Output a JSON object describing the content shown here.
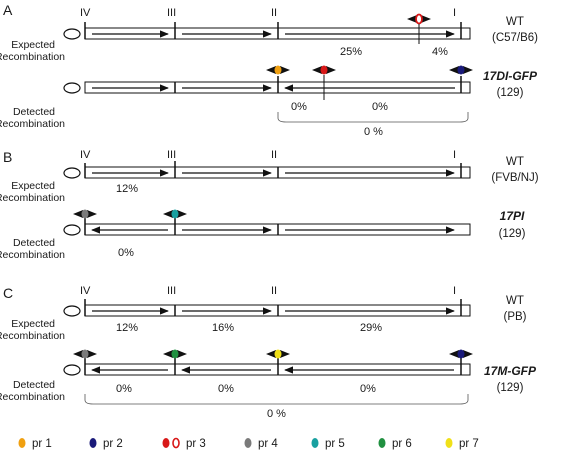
{
  "panels": {
    "A": {
      "letter": "A",
      "introns": [
        "IV",
        "III",
        "II",
        "I"
      ],
      "expected_label_1": "Expected",
      "expected_label_2": "Recombination",
      "wt_strain": "WT",
      "wt_background": "(C57/B6)",
      "expected_pcts": [
        "25%",
        "4%"
      ],
      "detected_label_1": "Detected",
      "detected_label_2": "Recombination",
      "mutant_strain": "17DI-GFP",
      "mutant_background": "(129)",
      "detected_pcts": [
        "0%",
        "0%"
      ],
      "detected_total": "0 %"
    },
    "B": {
      "letter": "B",
      "introns": [
        "IV",
        "III",
        "II",
        "I"
      ],
      "expected_label_1": "Expected",
      "expected_label_2": "Recombination",
      "wt_strain": "WT",
      "wt_background": "(FVB/NJ)",
      "expected_pcts": [
        "12%"
      ],
      "detected_label_1": "Detected",
      "detected_label_2": "Recombination",
      "mutant_strain": "17PI",
      "mutant_background": "(129)",
      "detected_pcts": [
        "0%"
      ]
    },
    "C": {
      "letter": "C",
      "introns": [
        "IV",
        "III",
        "II",
        "I"
      ],
      "expected_label_1": "Expected",
      "expected_label_2": "Recombination",
      "wt_strain": "WT",
      "wt_background": "(PB)",
      "expected_pcts": [
        "12%",
        "16%",
        "29%"
      ],
      "detected_label_1": "Detected",
      "detected_label_2": "Recombination",
      "mutant_strain": "17M-GFP",
      "mutant_background": "(129)",
      "detected_pcts": [
        "0%",
        "0%",
        "0%"
      ],
      "detected_total": "0 %"
    }
  },
  "legend": [
    {
      "label": "pr 1",
      "color": "#f0a010"
    },
    {
      "label": "pr 2",
      "color": "#1a1a7a"
    },
    {
      "label": "pr 3",
      "color": "#d81818"
    },
    {
      "label": "pr 4",
      "color": "#7a7a7a"
    },
    {
      "label": "pr 5",
      "color": "#18a0a0"
    },
    {
      "label": "pr 6",
      "color": "#209040"
    },
    {
      "label": "pr 7",
      "color": "#f0e018"
    }
  ]
}
